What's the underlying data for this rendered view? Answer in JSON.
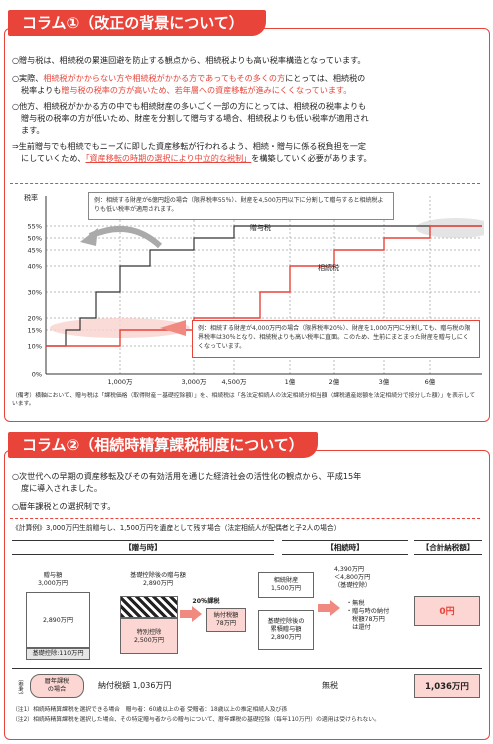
{
  "col1": {
    "title": "コラム①（改正の背景について）",
    "p1": "○贈与税は、相続税の累進回避を防止する観点から、相続税よりも高い税率構造となっています。",
    "p2a": "○実際、",
    "p2b": "相続税がかからない方や相続税がかかる方であってもその多くの方",
    "p2c": "にとっては、相続税の",
    "p2d": "税率よりも",
    "p2e": "贈与税の税率の方が高いため、若年層への資産移転が進みにくくなっています。",
    "p3a": "○他方、相続税がかかる方の中でも相続財産の多いごく一部の方にとっては、相続税の税率よりも",
    "p3b": "贈与税の税率の方が低いため、財産を分割して贈与する場合、相続税よりも低い税率が適用され",
    "p3c": "ます。",
    "p4a": "⇒生前贈与でも相続でもニーズに即した資産移転が行われるよう、相続・贈与に係る税負担を一定",
    "p4b": "にしていくため、",
    "p4c": "「資産移転の時期の選択により中立的な税制」",
    "p4d": "を構築していく必要があります。"
  },
  "chart": {
    "ylabel": "税率",
    "yticks": [
      "55%",
      "50%",
      "45%",
      "40%",
      "30%",
      "20%",
      "15%",
      "10%",
      "0%"
    ],
    "xticks": [
      "1,000万",
      "3,000万",
      "4,500万",
      "1億",
      "2億",
      "3億",
      "6億"
    ],
    "gift_label": "贈与税",
    "inh_label": "相続税",
    "callout_top": "例：相続する財産が6億円超の場合（限界税率55％）、財産を4,500万円以下に分割して贈与すると相続税よりも低い税率が適用されます。",
    "callout_bottom": "例：相続する財産が4,000万円の場合（限界税率20％）、財産を1,000万円に分割しても、贈与税の限界税率は30％となり、相続税よりも高い税率に直面。このため、生前にまとまった財産を贈与しにくくなっています。",
    "note": "（備考）横軸において、贈与税は「課税価格（取得財産－基礎控除額）」を、相続税は「各法定相続人の法定相続分相当額（課税遺産総額を法定相続分で按分した額）」を表示しています。"
  },
  "chart_data": {
    "type": "line",
    "ylabel": "税率",
    "x_ticks": [
      "1,000万",
      "3,000万",
      "4,500万",
      "1億",
      "2億",
      "3億",
      "6億"
    ],
    "y_ticks": [
      "0%",
      "10%",
      "15%",
      "20%",
      "30%",
      "40%",
      "45%",
      "50%",
      "55%"
    ],
    "series": [
      {
        "name": "贈与税",
        "points": [
          [
            "0",
            10
          ],
          [
            "200万",
            15
          ],
          [
            "400万",
            20
          ],
          [
            "600万",
            30
          ],
          [
            "1,000万",
            40
          ],
          [
            "1,500万",
            45
          ],
          [
            "3,000万",
            50
          ],
          [
            "4,500万",
            55
          ]
        ]
      },
      {
        "name": "相続税",
        "points": [
          [
            "0",
            10
          ],
          [
            "1,000万",
            15
          ],
          [
            "3,000万",
            20
          ],
          [
            "5,000万",
            30
          ],
          [
            "1億",
            40
          ],
          [
            "2億",
            45
          ],
          [
            "3億",
            50
          ],
          [
            "6億",
            55
          ]
        ]
      }
    ]
  },
  "col2": {
    "title": "コラム②（相続時精算課税制度について）",
    "p1a": "○次世代への早期の資産移転及びその有効活用を通じた経済社会の活性化の観点から、平成15年",
    "p1b": "度に導入されました。",
    "p2": "○暦年課税との選択制です。",
    "calc": "《計算例》3,000万円生前贈与し、1,500万円を遺産として残す場合（法定相続人が配偶者と子2人の場合）",
    "h_gift": "【贈与時】",
    "h_inh": "【相続時】",
    "h_total": "【合計納税額】",
    "gift_prop": "贈与額\n3,000万円",
    "gift_2890": "2,890万円",
    "gift_basic": "基礎控除:110万円",
    "gift_after": "基礎控除後の贈与額\n2,890万円",
    "special": "特別控除\n2,500万円",
    "rate20": "20％課税",
    "tax78": "納付税額\n78万円",
    "inh_prop": "相続財産\n1,500万円",
    "inh_after": "基礎控除後の\n累積贈与額\n2,890万円",
    "inh_limit": "4,390万円\n＜4,800万円\n（基礎控除）",
    "inh_result": "・無税\n・贈与時の納付\n　税額78万円\n　は還付",
    "total": "0円",
    "ref": "（参考）",
    "ref_case": "暦年課税\nの場合",
    "ref_tax": "納付税額  1,036万円",
    "ref_none": "無税",
    "ref_total": "1,036万円",
    "note1": "（注1）相続時精算課税を選択できる場合　贈与者：60歳以上の者 受贈者：18歳以上の推定相続人及び孫",
    "note2": "（注2）相続時精算課税を選択した場合、その特定贈与者からの贈与について、暦年課税の基礎控除（毎年110万円）の適用は受けられない。"
  }
}
